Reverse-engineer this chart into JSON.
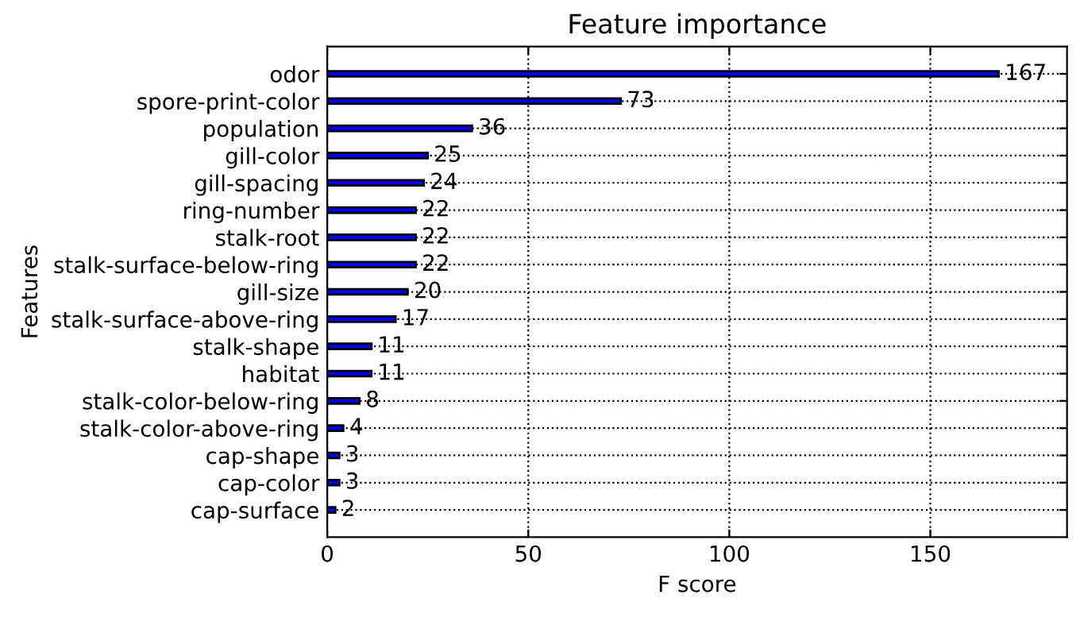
{
  "chart_data": {
    "type": "bar",
    "orientation": "horizontal",
    "title": "Feature importance",
    "xlabel": "F score",
    "ylabel": "Features",
    "categories": [
      "odor",
      "spore-print-color",
      "population",
      "gill-color",
      "gill-spacing",
      "ring-number",
      "stalk-root",
      "stalk-surface-below-ring",
      "gill-size",
      "stalk-surface-above-ring",
      "stalk-shape",
      "habitat",
      "stalk-color-below-ring",
      "stalk-color-above-ring",
      "cap-shape",
      "cap-color",
      "cap-surface"
    ],
    "values": [
      167,
      73,
      36,
      25,
      24,
      22,
      22,
      22,
      20,
      17,
      11,
      11,
      8,
      4,
      3,
      3,
      2
    ],
    "color": "#0000ff",
    "xlim": [
      0,
      184
    ],
    "xticks": [
      0,
      50,
      100,
      150
    ],
    "grid": true,
    "data_labels": true
  }
}
